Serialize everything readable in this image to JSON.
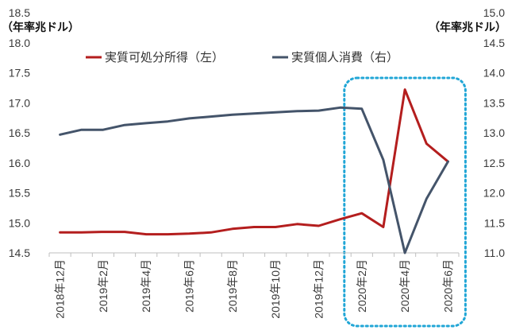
{
  "chart_data": {
    "type": "line",
    "x": [
      "2018年12月",
      "2019年1月",
      "2019年2月",
      "2019年3月",
      "2019年4月",
      "2019年5月",
      "2019年6月",
      "2019年7月",
      "2019年8月",
      "2019年9月",
      "2019年10月",
      "2019年11月",
      "2019年12月",
      "2020年1月",
      "2020年2月",
      "2020年3月",
      "2020年4月",
      "2020年5月",
      "2020年6月"
    ],
    "x_tick_labels": [
      "2018年12月",
      "2019年2月",
      "2019年4月",
      "2019年6月",
      "2019年8月",
      "2019年10月",
      "2019年12月",
      "2020年2月",
      "2020年4月",
      "2020年6月"
    ],
    "left_axis": {
      "unit_label": "（年率兆ドル）",
      "ylim": [
        14.5,
        18.5
      ],
      "ticks": [
        "18.5",
        "18.0",
        "17.5",
        "17.0",
        "16.5",
        "16.0",
        "15.5",
        "15.0",
        "14.5"
      ]
    },
    "right_axis": {
      "unit_label": "（年率兆ドル）",
      "ylim": [
        11.0,
        15.0
      ],
      "ticks": [
        "15.0",
        "14.5",
        "14.0",
        "13.5",
        "13.0",
        "12.5",
        "12.0",
        "11.5",
        "11.0"
      ]
    },
    "series": [
      {
        "name": "実質可処分所得（左）",
        "axis": "left",
        "color": "#b41e1e",
        "values": [
          14.84,
          14.84,
          14.85,
          14.85,
          14.81,
          14.81,
          14.82,
          14.84,
          14.9,
          14.93,
          14.93,
          14.98,
          14.95,
          15.06,
          15.16,
          14.93,
          17.22,
          16.32,
          16.02
        ]
      },
      {
        "name": "実質個人消費（右）",
        "axis": "right",
        "color": "#44546a",
        "values": [
          12.97,
          13.05,
          13.05,
          13.13,
          13.16,
          13.19,
          13.24,
          13.27,
          13.3,
          13.32,
          13.34,
          13.36,
          13.37,
          13.42,
          13.4,
          12.55,
          11.0,
          11.9,
          12.52
        ]
      }
    ],
    "highlight": {
      "from": "2020年2月",
      "to": "2020年6月",
      "color": "#21a6d6",
      "style": "dotted"
    },
    "legend_position": "top",
    "grid": false
  }
}
